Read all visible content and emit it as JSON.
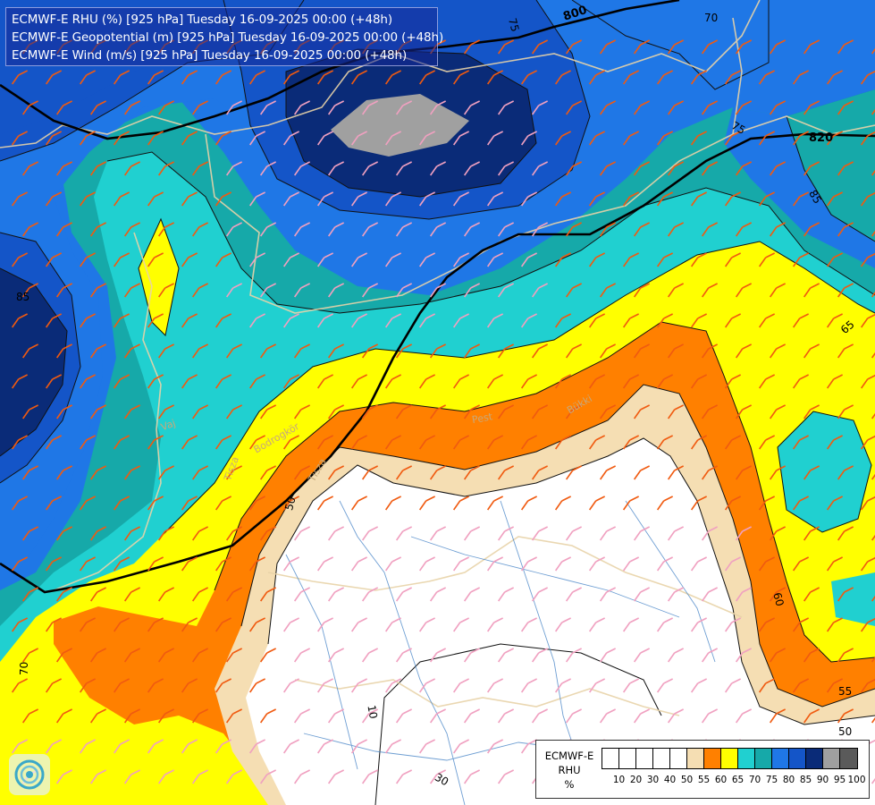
{
  "title": {
    "lines": [
      "ECMWF-E RHU (%) [925 hPa] Tuesday 16-09-2025 00:00 (+48h)",
      "ECMWF-E Geopotential (m) [925 hPa] Tuesday 16-09-2025 00:00 (+48h)",
      "ECMWF-E Wind (m/s) [925 hPa] Tuesday 16-09-2025 00:00 (+48h)"
    ]
  },
  "legend": {
    "lines": [
      "ECMWF-E",
      "RHU",
      "%"
    ],
    "colors": [
      "#ffffff",
      "#ffffff",
      "#ffffff",
      "#ffffff",
      "#ffffff",
      "#f5deb3",
      "#ff8000",
      "#ffff00",
      "#20d0d0",
      "#16a9a9",
      "#1f77e6",
      "#1455c8",
      "#0a2b78",
      "#a0a0a0",
      "#5a5a5a"
    ],
    "ticks": [
      "10",
      "20",
      "30",
      "40",
      "50",
      "55",
      "60",
      "65",
      "70",
      "75",
      "80",
      "85",
      "90",
      "95",
      "100"
    ]
  },
  "contour_labels": {
    "geopotential": [
      "800",
      "820"
    ],
    "rhu": [
      "75",
      "70",
      "75",
      "65",
      "85",
      "85",
      "60",
      "55",
      "50",
      "70",
      "50",
      "10",
      "30"
    ]
  },
  "place_labels": [
    "Bükki",
    "Pest",
    "Bodrogkör",
    "Tisza",
    "Tisza",
    "Vaj"
  ],
  "colors": {
    "rh_50": "#ffffff",
    "rh_55": "#f5deb3",
    "rh_60": "#ff8000",
    "rh_65": "#ffff00",
    "rh_70": "#20d0d0",
    "rh_75": "#16a9a9",
    "rh_80": "#1f77e6",
    "rh_85": "#1455c8",
    "rh_90": "#0a2b78",
    "rh_95": "#a0a0a0",
    "wind_red": "#d01010",
    "wind_orange": "#f05a10",
    "wind_pink": "#f0a0c0"
  },
  "icons": [
    "ecmwf-logo-icon"
  ]
}
